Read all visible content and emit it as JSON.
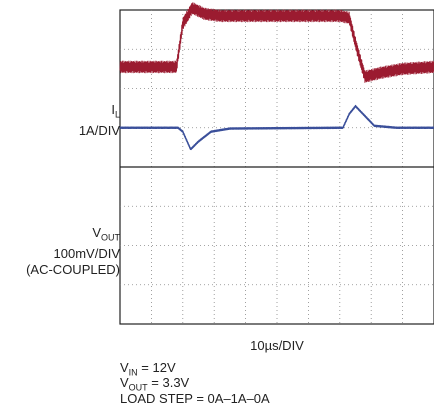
{
  "chart_data": {
    "type": "line",
    "grid": true,
    "x_unit_per_div": "10µs",
    "x_divisions": 10,
    "y_divisions": 8,
    "xlabel": "10µs/DIV",
    "series": [
      {
        "name": "IL",
        "label_main": "I",
        "label_sub": "L",
        "scale": "1A/DIV",
        "color": "#9b1b30",
        "center_div": 1.45,
        "points_div": [
          [
            0,
            0
          ],
          [
            1.8,
            0
          ],
          [
            2.0,
            1.1
          ],
          [
            2.3,
            1.5
          ],
          [
            2.7,
            1.35
          ],
          [
            3.2,
            1.3
          ],
          [
            7.0,
            1.3
          ],
          [
            7.3,
            1.25
          ],
          [
            7.55,
            0.45
          ],
          [
            7.8,
            -0.25
          ],
          [
            8.3,
            -0.15
          ],
          [
            9.0,
            -0.05
          ],
          [
            10,
            0
          ]
        ],
        "ripple_div": 0.3
      },
      {
        "name": "VOUT",
        "label_main": "V",
        "label_sub": "OUT",
        "scale": "100mV/DIV",
        "extra": "(AC-COUPLED)",
        "color": "#3a4f9a",
        "center_div": 3.0,
        "points_div": [
          [
            0,
            0
          ],
          [
            1.85,
            0
          ],
          [
            2.0,
            -0.1
          ],
          [
            2.25,
            -0.55
          ],
          [
            2.5,
            -0.35
          ],
          [
            2.9,
            -0.1
          ],
          [
            3.5,
            -0.02
          ],
          [
            7.1,
            0
          ],
          [
            7.3,
            0.35
          ],
          [
            7.5,
            0.55
          ],
          [
            7.8,
            0.3
          ],
          [
            8.1,
            0.05
          ],
          [
            8.8,
            0
          ],
          [
            10,
            0
          ]
        ],
        "ripple_div": 0.03
      }
    ]
  },
  "conditions": [
    {
      "main": "V",
      "sub": "IN",
      "rest": " = 12V"
    },
    {
      "main": "V",
      "sub": "OUT",
      "rest": " = 3.3V"
    },
    {
      "main": "LOAD STEP = 0A–1A–0A",
      "sub": "",
      "rest": ""
    }
  ]
}
